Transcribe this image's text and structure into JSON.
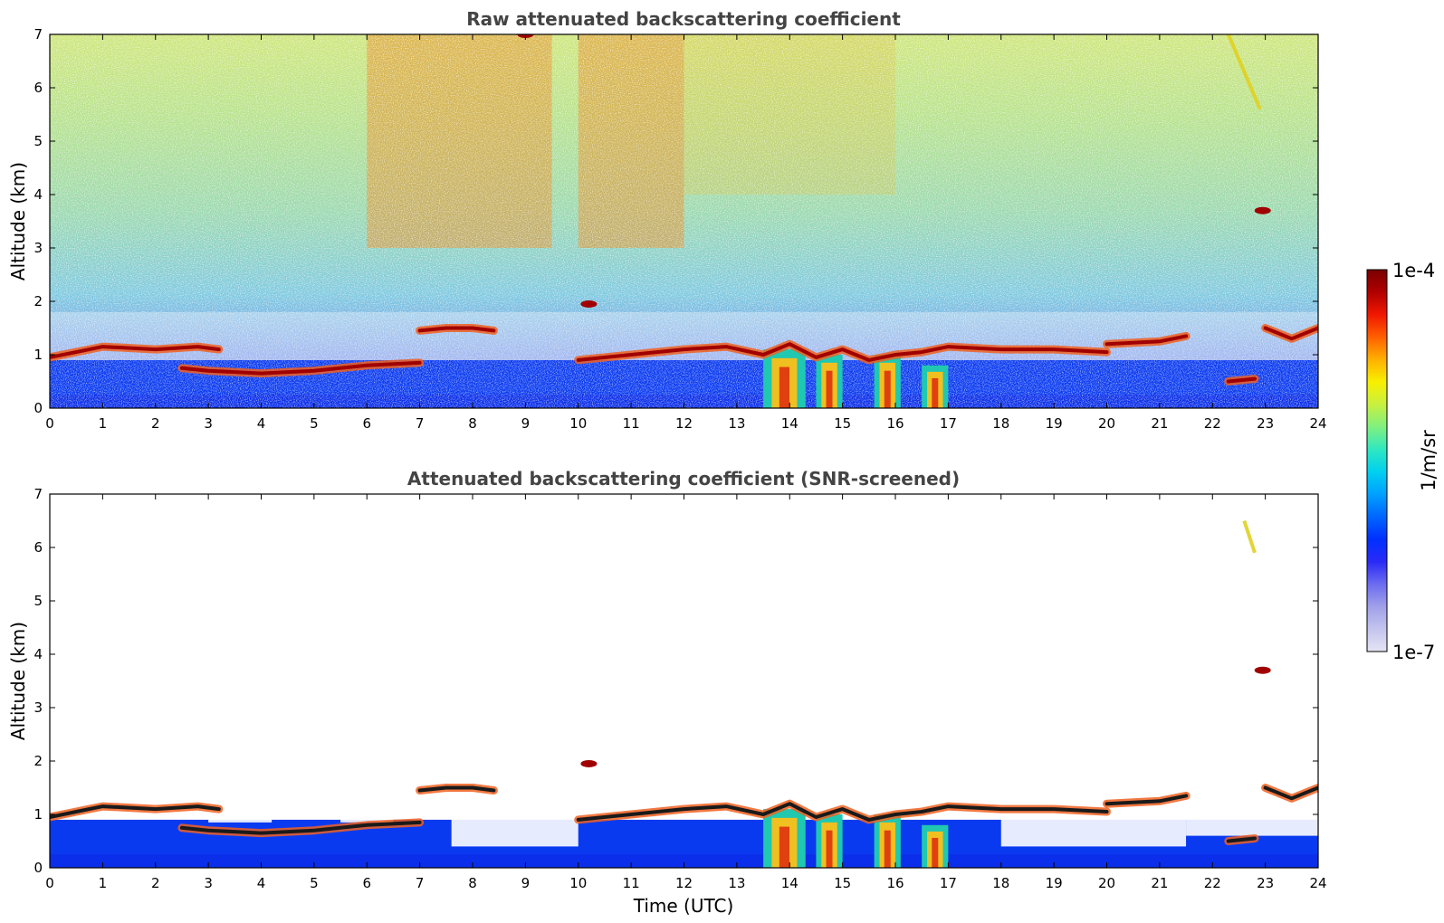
{
  "chart_data": [
    {
      "type": "heatmap",
      "title": "Raw attenuated backscattering coefficient",
      "xlabel": "",
      "ylabel": "Altitude (km)",
      "xlim": [
        0,
        24
      ],
      "ylim": [
        0,
        7
      ],
      "xticks": [
        "0",
        "1",
        "2",
        "3",
        "4",
        "5",
        "6",
        "7",
        "8",
        "9",
        "10",
        "11",
        "12",
        "13",
        "14",
        "15",
        "16",
        "17",
        "18",
        "19",
        "20",
        "21",
        "22",
        "23",
        "24"
      ],
      "yticks": [
        "0",
        "1",
        "2",
        "3",
        "4",
        "5",
        "6",
        "7"
      ],
      "background_noise": true,
      "aloft_signal": [
        {
          "x_range": [
            6,
            9.5
          ],
          "y_range": [
            3,
            7
          ],
          "level": "high"
        },
        {
          "x_range": [
            10,
            12
          ],
          "y_range": [
            3,
            7
          ],
          "level": "high"
        },
        {
          "x_range": [
            12,
            16
          ],
          "y_range": [
            4,
            7
          ],
          "level": "moderate"
        }
      ],
      "layers": [
        {
          "x": [
            0,
            0.5,
            1,
            2,
            2.8,
            3.2
          ],
          "y": [
            0.95,
            1.05,
            1.15,
            1.1,
            1.15,
            1.1
          ]
        },
        {
          "x": [
            2.5,
            3,
            4,
            5,
            6,
            7
          ],
          "y": [
            0.75,
            0.7,
            0.65,
            0.7,
            0.8,
            0.85
          ]
        },
        {
          "x": [
            7,
            7.5,
            8,
            8.4
          ],
          "y": [
            1.45,
            1.5,
            1.5,
            1.45
          ]
        },
        {
          "x": [
            10,
            11,
            12,
            12.8,
            13.5,
            14,
            14.5,
            15,
            15.5,
            16,
            16.5,
            17,
            18,
            19,
            20
          ],
          "y": [
            0.9,
            1.0,
            1.1,
            1.15,
            1.0,
            1.2,
            0.95,
            1.1,
            0.9,
            1.0,
            1.05,
            1.15,
            1.1,
            1.1,
            1.05
          ]
        },
        {
          "x": [
            20,
            21,
            21.5
          ],
          "y": [
            1.2,
            1.25,
            1.35
          ]
        },
        {
          "x": [
            22.3,
            22.8
          ],
          "y": [
            0.5,
            0.55
          ]
        },
        {
          "x": [
            23,
            23.5,
            24
          ],
          "y": [
            1.5,
            1.3,
            1.5
          ]
        }
      ],
      "blobs": [
        {
          "x": 10.2,
          "y": 1.95
        },
        {
          "x": 9.0,
          "y": 7.0
        },
        {
          "x": 22.95,
          "y": 3.7
        }
      ],
      "streaks": [
        {
          "x": [
            22.3,
            22.9
          ],
          "y": [
            7.0,
            5.6
          ]
        }
      ],
      "plumes": [
        {
          "x_range": [
            13.5,
            14.3
          ],
          "y_range": [
            0,
            1.1
          ]
        },
        {
          "x_range": [
            14.5,
            15.0
          ],
          "y_range": [
            0,
            1.0
          ]
        },
        {
          "x_range": [
            15.6,
            16.1
          ],
          "y_range": [
            0,
            1.0
          ]
        },
        {
          "x_range": [
            16.5,
            17.0
          ],
          "y_range": [
            0,
            0.8
          ]
        }
      ]
    },
    {
      "type": "heatmap",
      "title": "Attenuated backscattering coefficient (SNR-screened)",
      "xlabel": "Time (UTC)",
      "ylabel": "Altitude (km)",
      "xlim": [
        0,
        24
      ],
      "ylim": [
        0,
        7
      ],
      "xticks": [
        "0",
        "1",
        "2",
        "3",
        "4",
        "5",
        "6",
        "7",
        "8",
        "9",
        "10",
        "11",
        "12",
        "13",
        "14",
        "15",
        "16",
        "17",
        "18",
        "19",
        "20",
        "21",
        "22",
        "23",
        "24"
      ],
      "yticks": [
        "0",
        "1",
        "2",
        "3",
        "4",
        "5",
        "6",
        "7"
      ],
      "background_noise": false,
      "layers": [
        {
          "x": [
            0,
            0.5,
            1,
            2,
            2.8,
            3.2
          ],
          "y": [
            0.95,
            1.05,
            1.15,
            1.1,
            1.15,
            1.1
          ]
        },
        {
          "x": [
            2.5,
            3,
            4,
            5,
            6,
            7
          ],
          "y": [
            0.75,
            0.7,
            0.65,
            0.7,
            0.8,
            0.85
          ]
        },
        {
          "x": [
            7,
            7.5,
            8,
            8.4
          ],
          "y": [
            1.45,
            1.5,
            1.5,
            1.45
          ]
        },
        {
          "x": [
            10,
            11,
            12,
            12.8,
            13.5,
            14,
            14.5,
            15,
            15.5,
            16,
            16.5,
            17,
            18,
            19,
            20
          ],
          "y": [
            0.9,
            1.0,
            1.1,
            1.15,
            1.0,
            1.2,
            0.95,
            1.1,
            0.9,
            1.0,
            1.05,
            1.15,
            1.1,
            1.1,
            1.05
          ]
        },
        {
          "x": [
            20,
            21,
            21.5
          ],
          "y": [
            1.2,
            1.25,
            1.35
          ]
        },
        {
          "x": [
            22.3,
            22.8
          ],
          "y": [
            0.5,
            0.55
          ]
        },
        {
          "x": [
            23,
            23.5,
            24
          ],
          "y": [
            1.5,
            1.3,
            1.5
          ]
        }
      ],
      "blobs": [
        {
          "x": 10.2,
          "y": 1.95
        },
        {
          "x": 22.95,
          "y": 3.7
        }
      ],
      "streaks": [
        {
          "x": [
            22.6,
            22.8
          ],
          "y": [
            6.5,
            5.9
          ]
        }
      ],
      "plumes": [
        {
          "x_range": [
            13.5,
            14.3
          ],
          "y_range": [
            0,
            1.1
          ]
        },
        {
          "x_range": [
            14.5,
            15.0
          ],
          "y_range": [
            0,
            1.0
          ]
        },
        {
          "x_range": [
            15.6,
            16.1
          ],
          "y_range": [
            0,
            1.0
          ]
        },
        {
          "x_range": [
            16.5,
            17.0
          ],
          "y_range": [
            0,
            0.8
          ]
        }
      ],
      "screened_gaps": [
        {
          "x_range": [
            3.0,
            4.2
          ],
          "y_range": [
            0.85,
            1.25
          ]
        },
        {
          "x_range": [
            5.5,
            6.5
          ],
          "y_range": [
            0.85,
            1.2
          ]
        },
        {
          "x_range": [
            7.6,
            10.0
          ],
          "y_range": [
            0.4,
            1.4
          ]
        },
        {
          "x_range": [
            18.0,
            21.5
          ],
          "y_range": [
            0.4,
            1.0
          ]
        },
        {
          "x_range": [
            21.5,
            24.0
          ],
          "y_range": [
            0.6,
            1.2
          ]
        }
      ]
    }
  ],
  "colorbar": {
    "min_label": "1e-7",
    "max_label": "1e-4",
    "unit_label": "1/m/sr",
    "colors": [
      "#e4e4f4",
      "#c4c4ee",
      "#a0a0ea",
      "#6c6cf0",
      "#2a2af6",
      "#0030ff",
      "#0066ff",
      "#00a0ff",
      "#00d0f0",
      "#30e8c0",
      "#80f080",
      "#c8f040",
      "#f8f000",
      "#ffb000",
      "#ff6000",
      "#f01800",
      "#b00000",
      "#7a0000"
    ]
  }
}
